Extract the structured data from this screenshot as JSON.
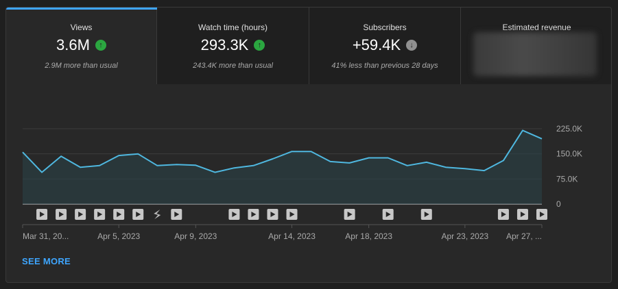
{
  "metrics": [
    {
      "label": "Views",
      "value": "3.6M",
      "trend": "up",
      "sub": "2.9M more than usual"
    },
    {
      "label": "Watch time (hours)",
      "value": "293.3K",
      "trend": "up",
      "sub": "243.4K more than usual"
    },
    {
      "label": "Subscribers",
      "value": "+59.4K",
      "trend": "down",
      "sub": "41% less than previous 28 days"
    },
    {
      "label": "Estimated revenue",
      "value": "",
      "trend": "",
      "sub": ""
    }
  ],
  "colors": {
    "accent": "#3ea6ff",
    "up": "#2ba640",
    "down": "#909090",
    "line": "#4fb8e0"
  },
  "chart_data": {
    "type": "area",
    "series": [
      {
        "values": [
          155000,
          95000,
          143000,
          110000,
          115000,
          145000,
          150000,
          115000,
          118000,
          116000,
          95000,
          108000,
          115000,
          135000,
          157000,
          157000,
          127000,
          123000,
          138000,
          138000,
          115000,
          125000,
          110000,
          106000,
          100000,
          130000,
          220000,
          195000
        ]
      }
    ],
    "ylim": [
      0,
      225000
    ],
    "y_ticks": [
      "225.0K",
      "150.0K",
      "75.0K",
      "0"
    ],
    "x_ticks": [
      {
        "i": 0,
        "label": "Mar 31, 20..."
      },
      {
        "i": 5,
        "label": "Apr 5, 2023"
      },
      {
        "i": 9,
        "label": "Apr 9, 2023"
      },
      {
        "i": 14,
        "label": "Apr 14, 2023"
      },
      {
        "i": 18,
        "label": "Apr 18, 2023"
      },
      {
        "i": 23,
        "label": "Apr 23, 2023"
      },
      {
        "i": 27,
        "label": "Apr 27, ..."
      }
    ],
    "publish_markers": [
      {
        "i": 1,
        "kind": "video"
      },
      {
        "i": 2,
        "kind": "video"
      },
      {
        "i": 3,
        "kind": "video"
      },
      {
        "i": 4,
        "kind": "video"
      },
      {
        "i": 5,
        "kind": "video"
      },
      {
        "i": 6,
        "kind": "video"
      },
      {
        "i": 7,
        "kind": "short"
      },
      {
        "i": 8,
        "kind": "video"
      },
      {
        "i": 11,
        "kind": "video"
      },
      {
        "i": 12,
        "kind": "video"
      },
      {
        "i": 13,
        "kind": "video"
      },
      {
        "i": 14,
        "kind": "video"
      },
      {
        "i": 17,
        "kind": "video"
      },
      {
        "i": 19,
        "kind": "video"
      },
      {
        "i": 21,
        "kind": "video"
      },
      {
        "i": 25,
        "kind": "video"
      },
      {
        "i": 26,
        "kind": "video"
      },
      {
        "i": 27,
        "kind": "video"
      }
    ],
    "grid": true
  },
  "see_more": "SEE MORE"
}
